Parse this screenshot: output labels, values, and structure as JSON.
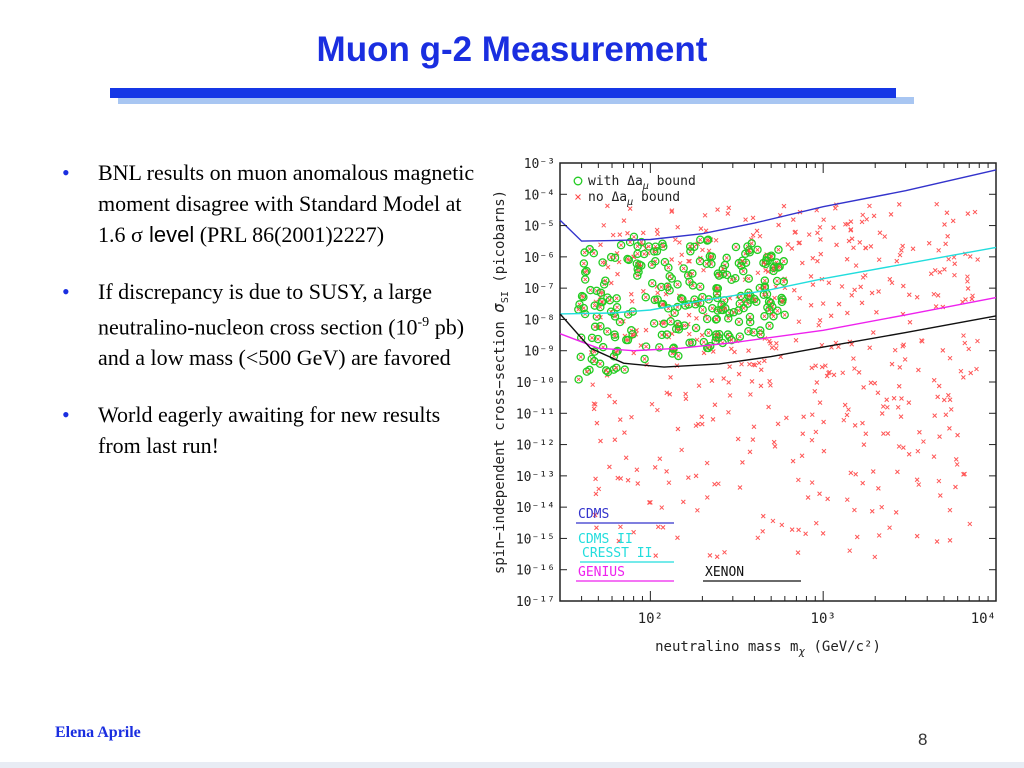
{
  "slide": {
    "title": "Muon g-2 Measurement",
    "author": "Elena Aprile",
    "page_number": "8",
    "colors": {
      "title": "#1a2ee0",
      "rule": "#1537e6",
      "rule_shadow": "#a8c6f2"
    }
  },
  "bullets": [
    {
      "text": "BNL results  on muon anomalous magnetic moment disagree with Standard Model at 1.6 ",
      "sigma": "σ",
      "level": " level",
      "tail": " (PRL 86(2001)2227)"
    },
    {
      "pre": "If discrepancy is due to SUSY, a large neutralino-nucleon cross section (10",
      "sup": "-9",
      "post": " pb) and a low mass (<500 GeV) are favored"
    },
    {
      "text": "World eagerly awaiting for new results from last run!"
    }
  ],
  "chart_data": {
    "type": "scatter",
    "ylabel_prefix": "spin−independent cross−section ",
    "ylabel_sigma": "σ",
    "ylabel_sub": "SI",
    "ylabel_suffix": " (picobarns)",
    "xlabel_prefix": "neutralino mass m",
    "xlabel_sub": "χ",
    "xlabel_suffix": " (GeV/c²)",
    "x_scale": "log",
    "y_scale": "log",
    "xlim": [
      30,
      10000
    ],
    "ylim": [
      1e-17,
      0.001
    ],
    "x_ticks": [
      {
        "value": 100,
        "label": "10²"
      },
      {
        "value": 1000,
        "label": "10³"
      },
      {
        "value": 10000,
        "label": "10⁴"
      }
    ],
    "y_ticks": [
      {
        "exp": -3,
        "label": "10⁻³"
      },
      {
        "exp": -4,
        "label": "10⁻⁴"
      },
      {
        "exp": -5,
        "label": "10⁻⁵"
      },
      {
        "exp": -6,
        "label": "10⁻⁶"
      },
      {
        "exp": -7,
        "label": "10⁻⁷"
      },
      {
        "exp": -8,
        "label": "10⁻⁸"
      },
      {
        "exp": -9,
        "label": "10⁻⁹"
      },
      {
        "exp": -10,
        "label": "10⁻¹⁰"
      },
      {
        "exp": -11,
        "label": "10⁻¹¹"
      },
      {
        "exp": -12,
        "label": "10⁻¹²"
      },
      {
        "exp": -13,
        "label": "10⁻¹³"
      },
      {
        "exp": -14,
        "label": "10⁻¹⁴"
      },
      {
        "exp": -15,
        "label": "10⁻¹⁵"
      },
      {
        "exp": -16,
        "label": "10⁻¹⁶"
      },
      {
        "exp": -17,
        "label": "10⁻¹⁷"
      }
    ],
    "legend_points": [
      {
        "marker": "circle",
        "color": "#22cc22",
        "label_pre": "with Δa",
        "label_sub": "μ",
        "label_post": " bound"
      },
      {
        "marker": "cross",
        "color": "#ff4444",
        "label_pre": "no Δa",
        "label_sub": "μ",
        "label_post": " bound"
      }
    ],
    "legend_position": "top-left",
    "limit_curves": [
      {
        "name": "CDMS",
        "color": "#3333cc",
        "points": [
          [
            30,
            1.5e-05
          ],
          [
            40,
            3.2e-06
          ],
          [
            60,
            3.3e-06
          ],
          [
            100,
            3.6e-06
          ],
          [
            200,
            5.5e-06
          ],
          [
            400,
            1.2e-05
          ],
          [
            1000,
            4e-05
          ],
          [
            3000,
            0.00013
          ],
          [
            10000,
            0.0006
          ]
        ]
      },
      {
        "name": "CDMS II",
        "name2": "CRESST II",
        "color": "#22dddd",
        "points": [
          [
            30,
            1.5e-08
          ],
          [
            60,
            1.6e-08
          ],
          [
            100,
            2e-08
          ],
          [
            200,
            4e-08
          ],
          [
            500,
            9e-08
          ],
          [
            1000,
            2e-07
          ],
          [
            3000,
            6e-07
          ],
          [
            10000,
            2e-06
          ]
        ]
      },
      {
        "name": "GENIUS",
        "color": "#ee22ee",
        "points": [
          [
            30,
            3.5e-09
          ],
          [
            50,
            1.2e-09
          ],
          [
            80,
            1e-09
          ],
          [
            150,
            1.2e-09
          ],
          [
            300,
            1.8e-09
          ],
          [
            1000,
            4.5e-09
          ],
          [
            3000,
            1.4e-08
          ],
          [
            10000,
            5e-08
          ]
        ]
      },
      {
        "name": "XENON",
        "color": "#111111",
        "points": [
          [
            30,
            1.5e-08
          ],
          [
            45,
            1.2e-09
          ],
          [
            70,
            4e-10
          ],
          [
            120,
            3e-10
          ],
          [
            250,
            3.8e-10
          ],
          [
            500,
            6.5e-10
          ],
          [
            1000,
            1.3e-09
          ],
          [
            3000,
            3.8e-09
          ],
          [
            10000,
            1.3e-08
          ]
        ]
      }
    ],
    "scan_region_with_bound": {
      "marker": "circle",
      "color": "#22cc22",
      "x_range_gev": [
        38,
        600
      ],
      "y_range_pb": [
        1e-10,
        1e-05
      ],
      "count": 260
    },
    "scan_region_no_bound": {
      "marker": "cross",
      "color": "#ff5555",
      "x_range_gev": [
        45,
        8000
      ],
      "y_range_pb": [
        1e-16,
        0.0001
      ],
      "count": 480
    }
  }
}
